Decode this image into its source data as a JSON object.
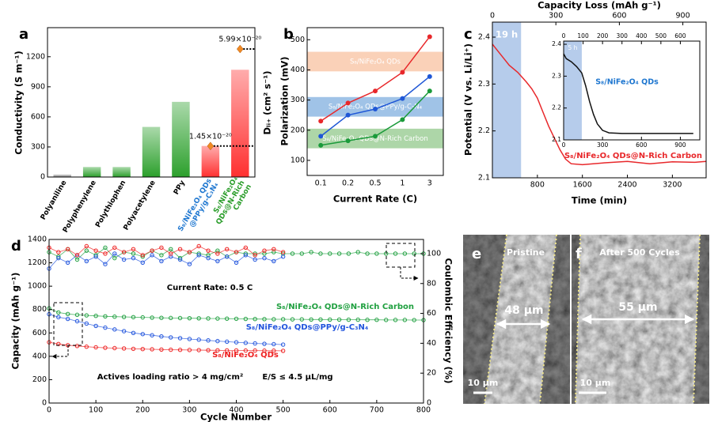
{
  "chart_data": [
    {
      "type": "bar",
      "panel": "a",
      "categories": [
        "Polyaniline",
        "Polyphenylene",
        "Polythiophen",
        "Polyacetylene",
        "PPy",
        "S₈/NiFe₂O₄ QDs\n@PPy/g-C₃N₄",
        "S₈/NiFe₂O₄\nQDs@N-Rich\nCarbon"
      ],
      "category_colors": [
        "#000000",
        "#000000",
        "#000000",
        "#000000",
        "#000000",
        "#1f77d0",
        "#2a9d2a"
      ],
      "values": [
        25,
        100,
        100,
        500,
        750,
        310,
        1070
      ],
      "colors": [
        "#8c8c8c",
        "#2ca02c",
        "#2ca02c",
        "#2ca02c",
        "#2ca02c",
        "#ff3030",
        "#ff3030"
      ],
      "ylim": [
        0,
        1490
      ],
      "yticks": [
        0,
        300,
        600,
        900,
        1200
      ],
      "ylabel": "Conductivity (S m⁻¹)",
      "y2label": "Dₗᵢ₊ (cm² s⁻¹)",
      "y2lim": [
        0,
        6.99e-20
      ],
      "dli_values": [
        null,
        null,
        null,
        null,
        null,
        1.45e-20,
        5.99e-20
      ],
      "dli_labels": [
        null,
        null,
        null,
        null,
        null,
        "1.45×10⁻²⁰",
        "5.99×10⁻²⁰"
      ],
      "marker_color": "#f08a24"
    },
    {
      "type": "line",
      "panel": "b",
      "markers": true,
      "categories": [
        "0.1",
        "0.2",
        "0.5",
        "1",
        "3"
      ],
      "xlabel": "Current Rate (C)",
      "ylabel": "Polarization (mV)",
      "ylim": [
        50,
        540
      ],
      "yticks": [
        100,
        200,
        300,
        400,
        500
      ],
      "series": [
        {
          "name": "S₈/NiFe₂O₄ QDs",
          "color": "#e8282b",
          "band": [
            395,
            460
          ],
          "band_color": "#f9c9ab",
          "values": [
            230,
            290,
            330,
            392,
            510
          ]
        },
        {
          "name": "S₈/NiFe₂O₄ QDs@PPy/g-C₃N₄",
          "color": "#1f57d6",
          "band": [
            245,
            310
          ],
          "band_color": "#8fb8e3",
          "values": [
            180,
            250,
            270,
            305,
            378
          ]
        },
        {
          "name": "S₈/NiFe₂O₄ QDs@N-Rich Carbon",
          "color": "#1a9a3a",
          "band": [
            140,
            205
          ],
          "band_color": "#9fcf99",
          "values": [
            150,
            165,
            180,
            235,
            330
          ]
        }
      ]
    },
    {
      "type": "line",
      "panel": "c",
      "xlabel": "Time (min)",
      "ylabel": "Potential (V vs. Li/Li⁺)",
      "x2label": "Capacity Loss (mAh g⁻¹)",
      "xlim": [
        0,
        3800
      ],
      "xticks": [
        800,
        1600,
        2400,
        3200
      ],
      "x2lim": [
        0,
        1010
      ],
      "x2ticks": [
        0,
        300,
        600,
        900
      ],
      "ylim": [
        2.1,
        2.432
      ],
      "yticks": [
        2.1,
        2.2,
        2.3,
        2.4
      ],
      "shade": {
        "label": "19 h",
        "range": [
          0,
          510
        ],
        "color": "#a9c3e8"
      },
      "series": [
        {
          "name": "S₈/NiFe₂O₄ QDs@N-Rich Carbon",
          "color": "#e8282b",
          "x": [
            0,
            100,
            200,
            300,
            450,
            600,
            700,
            800,
            900,
            1000,
            1100,
            1200,
            1300,
            1400,
            1600,
            2000,
            2400,
            2800,
            3200,
            3600,
            3800
          ],
          "values": [
            2.385,
            2.37,
            2.355,
            2.34,
            2.325,
            2.305,
            2.29,
            2.27,
            2.24,
            2.21,
            2.185,
            2.16,
            2.14,
            2.13,
            2.128,
            2.132,
            2.135,
            2.13,
            2.134,
            2.133,
            2.135
          ]
        }
      ]
    },
    {
      "type": "line",
      "xlim": [
        0,
        1050
      ],
      "xticks": [
        0,
        300,
        600,
        900
      ],
      "x2lim": [
        0,
        700
      ],
      "x2ticks": [
        0,
        100,
        200,
        300,
        400,
        500,
        600
      ],
      "ylim": [
        2.1,
        2.41
      ],
      "yticks": [
        2.1,
        2.2,
        2.3,
        2.4
      ],
      "shade": {
        "label": "5 h",
        "range": [
          0,
          140
        ],
        "color": "#a9c3e8"
      },
      "series": [
        {
          "name": "S₈/NiFe₂O₄ QDs",
          "color": "#111111",
          "label_color": "#1f77d0",
          "x": [
            0,
            20,
            60,
            100,
            140,
            170,
            200,
            230,
            260,
            300,
            350,
            450,
            600,
            800,
            1000
          ],
          "values": [
            2.37,
            2.355,
            2.345,
            2.33,
            2.31,
            2.27,
            2.22,
            2.18,
            2.15,
            2.13,
            2.122,
            2.12,
            2.12,
            2.12,
            2.12
          ]
        }
      ]
    },
    {
      "type": "scatter",
      "panel": "d",
      "xlabel": "Cycle Number",
      "ylabel": "Capacity (mAh g⁻¹)",
      "y2label": "Coulombic Efficiency (%)",
      "xlim": [
        0,
        800
      ],
      "xticks": [
        0,
        100,
        200,
        300,
        400,
        500,
        600,
        700,
        800
      ],
      "ylim": [
        0,
        1400
      ],
      "yticks": [
        0,
        200,
        400,
        600,
        800,
        1000,
        1200,
        1400
      ],
      "y2lim": [
        0,
        109.5
      ],
      "y2ticks": [
        0,
        20,
        40,
        60,
        80,
        100
      ],
      "annotations": [
        "Current Rate: 0.5 C",
        "Actives loading ratio > 4 mg/cm²",
        "E/S ≤ 4.5 µL/mg"
      ],
      "series": [
        {
          "name": "S₈/NiFe₂O₄ QDs@N-Rich Carbon",
          "color": "#20a040",
          "x": [
            0,
            20,
            40,
            60,
            80,
            100,
            120,
            140,
            160,
            180,
            200,
            220,
            240,
            260,
            280,
            300,
            320,
            340,
            360,
            380,
            400,
            420,
            440,
            460,
            480,
            500,
            520,
            540,
            560,
            580,
            600,
            620,
            640,
            660,
            680,
            700,
            720,
            740,
            760,
            780,
            800
          ],
          "values": [
            810,
            775,
            762,
            755,
            750,
            746,
            742,
            739,
            737,
            735,
            733,
            731,
            729,
            728,
            727,
            726,
            725,
            724,
            723,
            722,
            721,
            720,
            719,
            718,
            717,
            717,
            716,
            716,
            715,
            715,
            714,
            714,
            713,
            713,
            712,
            712,
            711,
            711,
            711,
            710,
            710
          ]
        },
        {
          "name": "S₈/NiFe₂O₄ QDs@PPy/g-C₃N₄",
          "color": "#2255dd",
          "x": [
            0,
            20,
            40,
            60,
            80,
            100,
            120,
            140,
            160,
            180,
            200,
            220,
            240,
            260,
            280,
            300,
            320,
            340,
            360,
            380,
            400,
            420,
            440,
            460,
            480,
            500
          ],
          "values": [
            760,
            735,
            720,
            700,
            680,
            660,
            645,
            630,
            615,
            600,
            590,
            580,
            570,
            562,
            555,
            548,
            542,
            536,
            530,
            525,
            520,
            515,
            510,
            507,
            504,
            500
          ]
        },
        {
          "name": "S₈/NiFe₂O₄ QDs",
          "color": "#ee2222",
          "x": [
            0,
            20,
            40,
            60,
            80,
            100,
            120,
            140,
            160,
            180,
            200,
            220,
            240,
            260,
            280,
            300,
            320,
            340,
            360,
            380,
            400,
            420,
            440,
            460,
            480,
            500
          ],
          "values": [
            520,
            505,
            495,
            488,
            482,
            477,
            473,
            470,
            467,
            464,
            462,
            460,
            458,
            456,
            455,
            454,
            453,
            452,
            451,
            450,
            450,
            449,
            449,
            448,
            448,
            447
          ]
        },
        {
          "axis": "y2",
          "color": "#20a040",
          "x": [
            0,
            20,
            40,
            60,
            80,
            100,
            120,
            140,
            160,
            180,
            200,
            220,
            240,
            260,
            280,
            300,
            320,
            340,
            360,
            380,
            400,
            420,
            440,
            460,
            480,
            500,
            520,
            540,
            560,
            580,
            600,
            620,
            640,
            660,
            680,
            700,
            720,
            740,
            760,
            780,
            800
          ],
          "values": [
            101,
            98,
            103,
            96,
            102,
            99,
            104,
            97,
            101,
            100,
            98,
            102,
            99,
            103,
            97,
            101,
            100,
            99,
            102,
            98,
            101,
            100,
            100,
            100,
            101,
            100,
            100,
            100,
            101,
            100,
            100,
            100,
            100,
            101,
            100,
            100,
            100,
            100,
            100,
            100,
            100
          ]
        },
        {
          "axis": "y2",
          "color": "#2255dd",
          "x": [
            0,
            20,
            40,
            60,
            80,
            100,
            120,
            140,
            160,
            180,
            200,
            220,
            240,
            260,
            280,
            300,
            320,
            340,
            360,
            380,
            400,
            420,
            440,
            460,
            480,
            500
          ],
          "values": [
            90,
            97,
            94,
            99,
            95,
            98,
            93,
            100,
            96,
            97,
            94,
            99,
            95,
            98,
            96,
            93,
            99,
            97,
            95,
            98,
            94,
            99,
            96,
            97,
            95,
            98
          ]
        },
        {
          "axis": "y2",
          "color": "#ee2222",
          "x": [
            0,
            20,
            40,
            60,
            80,
            100,
            120,
            140,
            160,
            180,
            200,
            220,
            240,
            260,
            280,
            300,
            320,
            340,
            360,
            380,
            400,
            420,
            440,
            460,
            480,
            500
          ],
          "values": [
            104,
            101,
            103,
            99,
            105,
            102,
            100,
            104,
            101,
            103,
            99,
            102,
            104,
            100,
            103,
            101,
            105,
            102,
            100,
            103,
            101,
            104,
            99,
            102,
            103,
            101
          ]
        }
      ]
    }
  ],
  "images": [
    {
      "panel": "e",
      "caption": "Pristine",
      "thickness": "48 µm",
      "scale_bar": "10 µm"
    },
    {
      "panel": "f",
      "caption": "After 500 Cycles",
      "thickness": "55 µm",
      "scale_bar": "10 µm"
    }
  ]
}
